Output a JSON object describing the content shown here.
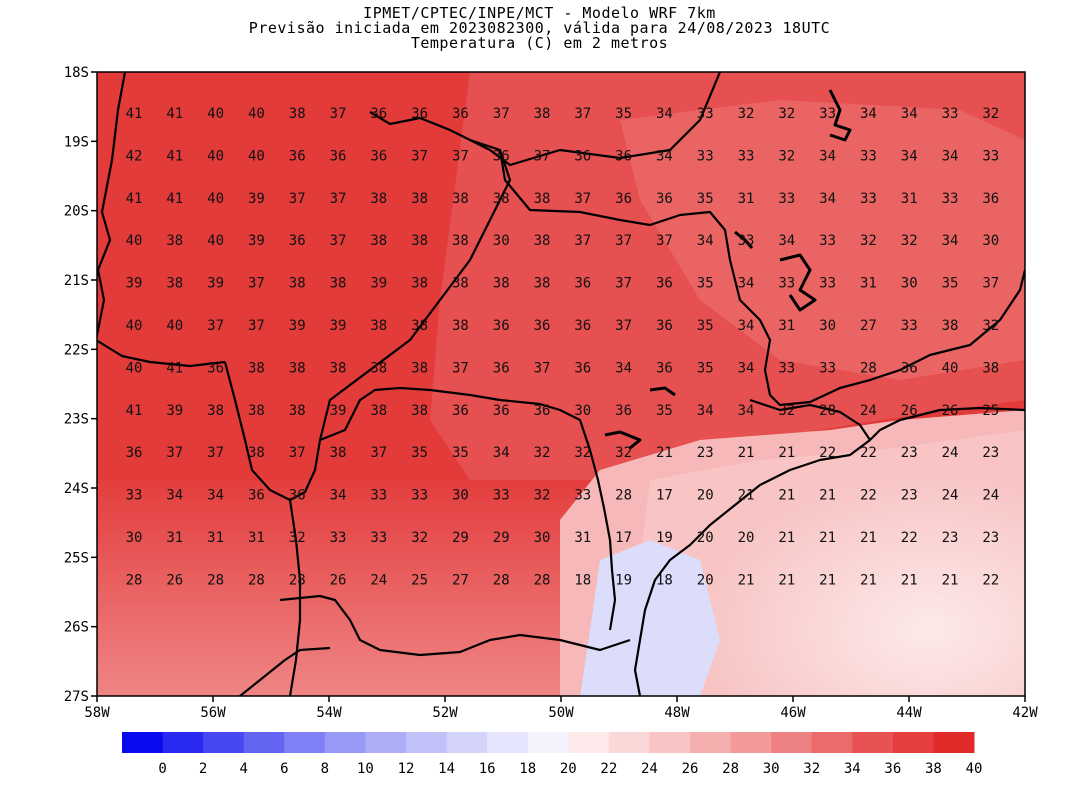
{
  "titles": {
    "line1": "IPMET/CPTEC/INPE/MCT - Modelo WRF 7km",
    "line2": "Previsão iniciada em 2023082300, válida para 24/08/2023 18UTC",
    "line3": "Temperatura (C) em 2 metros"
  },
  "axes": {
    "lat_labels": [
      "18S",
      "19S",
      "20S",
      "21S",
      "22S",
      "23S",
      "24S",
      "25S",
      "26S",
      "27S"
    ],
    "lon_labels": [
      "58W",
      "56W",
      "54W",
      "52W",
      "50W",
      "48W",
      "46W",
      "44W",
      "42W"
    ]
  },
  "colorbar": {
    "labels": [
      "0",
      "2",
      "4",
      "6",
      "8",
      "10",
      "12",
      "14",
      "16",
      "18",
      "20",
      "22",
      "24",
      "26",
      "28",
      "30",
      "32",
      "34",
      "36",
      "38",
      "40"
    ],
    "colors": [
      "#0a0aee",
      "#2929f0",
      "#4848f2",
      "#6565f4",
      "#8080f6",
      "#9898f7",
      "#aeaef8",
      "#c2c2fa",
      "#d4d4fb",
      "#e4e4fc",
      "#f3f3fe",
      "#fde9e9",
      "#fbd8d8",
      "#f8c4c4",
      "#f5afaf",
      "#f29999",
      "#ee8181",
      "#eb6a6a",
      "#e75353",
      "#e43e3e",
      "#e12a2a"
    ]
  },
  "chart_data": {
    "type": "heatmap",
    "title": "Temperatura (C) em 2 metros",
    "lon_range": [
      -58,
      -42
    ],
    "lat_range": [
      -27,
      -18
    ],
    "values": [
      [
        "41",
        "41",
        "40",
        "40",
        "38",
        "37",
        "36",
        "36",
        "36",
        "37",
        "38",
        "37",
        "35",
        "34",
        "33",
        "32",
        "32",
        "33",
        "34",
        "34",
        "33",
        "32"
      ],
      [
        "42",
        "41",
        "40",
        "40",
        "36",
        "36",
        "36",
        "37",
        "37",
        "36",
        "37",
        "36",
        "36",
        "34",
        "33",
        "33",
        "32",
        "34",
        "33",
        "34",
        "34",
        "33"
      ],
      [
        "41",
        "41",
        "40",
        "39",
        "37",
        "37",
        "38",
        "38",
        "38",
        "38",
        "38",
        "37",
        "36",
        "36",
        "35",
        "31",
        "33",
        "34",
        "33",
        "31",
        "33",
        "36"
      ],
      [
        "40",
        "38",
        "40",
        "39",
        "36",
        "37",
        "38",
        "38",
        "38",
        "30",
        "38",
        "37",
        "37",
        "37",
        "34",
        "33",
        "34",
        "33",
        "32",
        "32",
        "34",
        "30"
      ],
      [
        "39",
        "38",
        "39",
        "37",
        "38",
        "38",
        "39",
        "38",
        "38",
        "38",
        "38",
        "36",
        "37",
        "36",
        "35",
        "34",
        "33",
        "33",
        "31",
        "30",
        "35",
        "37"
      ],
      [
        "40",
        "40",
        "37",
        "37",
        "39",
        "39",
        "38",
        "38",
        "38",
        "36",
        "36",
        "36",
        "37",
        "36",
        "35",
        "34",
        "31",
        "30",
        "27",
        "33",
        "38",
        "32"
      ],
      [
        "40",
        "41",
        "36",
        "38",
        "38",
        "38",
        "38",
        "38",
        "37",
        "36",
        "37",
        "36",
        "34",
        "36",
        "35",
        "34",
        "33",
        "33",
        "28",
        "36",
        "40",
        "38"
      ],
      [
        "41",
        "39",
        "38",
        "38",
        "38",
        "39",
        "38",
        "38",
        "36",
        "36",
        "36",
        "30",
        "36",
        "35",
        "34",
        "34",
        "32",
        "28",
        "24",
        "26",
        "26",
        "25"
      ],
      [
        "36",
        "37",
        "37",
        "38",
        "37",
        "38",
        "37",
        "35",
        "35",
        "34",
        "32",
        "32",
        "32",
        "21",
        "23",
        "21",
        "21",
        "22",
        "22",
        "23",
        "24",
        "23"
      ],
      [
        "33",
        "34",
        "34",
        "36",
        "36",
        "34",
        "33",
        "33",
        "30",
        "33",
        "32",
        "33",
        "28",
        "17",
        "20",
        "21",
        "21",
        "21",
        "22",
        "23",
        "24",
        "24"
      ],
      [
        "30",
        "31",
        "31",
        "31",
        "32",
        "33",
        "33",
        "32",
        "29",
        "29",
        "30",
        "31",
        "17",
        "19",
        "20",
        "20",
        "21",
        "21",
        "21",
        "22",
        "23",
        "23"
      ],
      [
        "28",
        "26",
        "28",
        "28",
        "28",
        "26",
        "24",
        "25",
        "27",
        "28",
        "28",
        "18",
        "19",
        "18",
        "20",
        "21",
        "21",
        "21",
        "21",
        "21",
        "21",
        "22"
      ]
    ]
  }
}
